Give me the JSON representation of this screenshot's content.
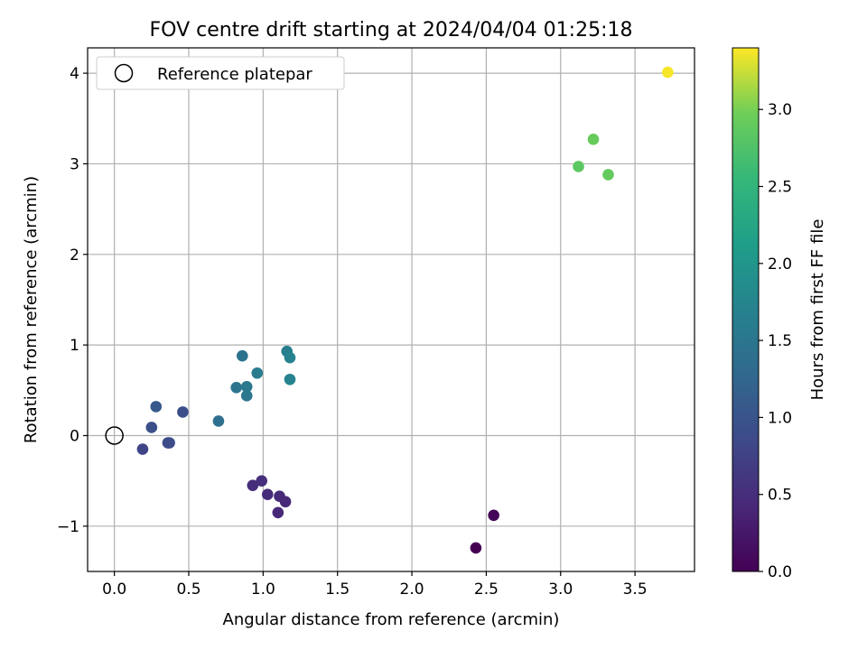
{
  "chart_data": {
    "type": "scatter",
    "title": "FOV centre drift starting at 2024/04/04 01:25:18",
    "xlabel": "Angular distance from reference (arcmin)",
    "ylabel": "Rotation from reference (arcmin)",
    "xlim": [
      -0.18,
      3.9
    ],
    "ylim": [
      -1.5,
      4.28
    ],
    "xticks": [
      0.0,
      0.5,
      1.0,
      1.5,
      2.0,
      2.5,
      3.0,
      3.5
    ],
    "xtick_labels": [
      "0.0",
      "0.5",
      "1.0",
      "1.5",
      "2.0",
      "2.5",
      "3.0",
      "3.5"
    ],
    "yticks": [
      -1,
      0,
      1,
      2,
      3,
      4
    ],
    "ytick_labels": [
      "−1",
      "0",
      "1",
      "2",
      "3",
      "4"
    ],
    "grid": true,
    "legend": {
      "position": "upper-left",
      "entries": [
        "Reference platepar"
      ]
    },
    "reference_point": {
      "x": 0.0,
      "y": 0.0
    },
    "colormap": "viridis",
    "colorbar": {
      "label": "Hours from first FF file",
      "range": [
        0.0,
        3.4
      ],
      "ticks": [
        0.0,
        0.5,
        1.0,
        1.5,
        2.0,
        2.5,
        3.0
      ],
      "tick_labels": [
        "0.0",
        "0.5",
        "1.0",
        "1.5",
        "2.0",
        "2.5",
        "3.0"
      ]
    },
    "points": [
      {
        "x": 2.43,
        "y": -1.24,
        "hours": 0.0
      },
      {
        "x": 2.55,
        "y": -0.88,
        "hours": 0.05
      },
      {
        "x": 1.1,
        "y": -0.85,
        "hours": 0.42
      },
      {
        "x": 1.15,
        "y": -0.73,
        "hours": 0.44
      },
      {
        "x": 1.11,
        "y": -0.67,
        "hours": 0.46
      },
      {
        "x": 1.03,
        "y": -0.65,
        "hours": 0.48
      },
      {
        "x": 0.93,
        "y": -0.55,
        "hours": 0.5
      },
      {
        "x": 0.99,
        "y": -0.5,
        "hours": 0.52
      },
      {
        "x": 0.19,
        "y": -0.15,
        "hours": 0.8
      },
      {
        "x": 0.36,
        "y": -0.08,
        "hours": 0.88
      },
      {
        "x": 0.37,
        "y": -0.08,
        "hours": 0.9
      },
      {
        "x": 0.25,
        "y": 0.09,
        "hours": 0.95
      },
      {
        "x": 0.46,
        "y": 0.26,
        "hours": 0.92
      },
      {
        "x": 0.28,
        "y": 0.32,
        "hours": 1.05
      },
      {
        "x": 0.7,
        "y": 0.16,
        "hours": 1.4
      },
      {
        "x": 0.82,
        "y": 0.53,
        "hours": 1.48
      },
      {
        "x": 0.89,
        "y": 0.44,
        "hours": 1.52
      },
      {
        "x": 0.89,
        "y": 0.54,
        "hours": 1.55
      },
      {
        "x": 0.86,
        "y": 0.88,
        "hours": 1.45
      },
      {
        "x": 0.96,
        "y": 0.69,
        "hours": 1.6
      },
      {
        "x": 1.16,
        "y": 0.93,
        "hours": 1.65
      },
      {
        "x": 1.18,
        "y": 0.86,
        "hours": 1.7
      },
      {
        "x": 1.18,
        "y": 0.62,
        "hours": 1.72
      },
      {
        "x": 3.12,
        "y": 2.97,
        "hours": 2.85
      },
      {
        "x": 3.22,
        "y": 3.27,
        "hours": 2.92
      },
      {
        "x": 3.32,
        "y": 2.88,
        "hours": 2.9
      },
      {
        "x": 3.72,
        "y": 4.01,
        "hours": 3.38
      }
    ]
  }
}
